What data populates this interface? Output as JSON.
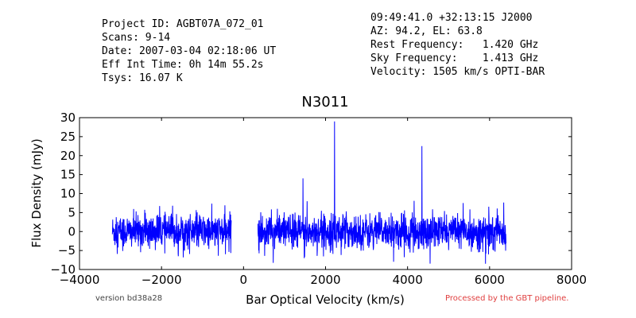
{
  "header": {
    "left": [
      "Project ID: AGBT07A_072_01",
      "Scans: 9-14",
      "Date: 2007-03-04 02:18:06 UT",
      "Eff Int Time: 0h 14m 55.2s",
      "Tsys: 16.07 K"
    ],
    "right": [
      "09:49:41.0 +32:13:15 J2000",
      "AZ: 94.2, EL: 63.8",
      "Rest Frequency:   1.420 GHz",
      "Sky Frequency:    1.413 GHz",
      "Velocity: 1505 km/s OPTI-BAR"
    ]
  },
  "footer": {
    "version": "version bd38a28",
    "processed": "Processed by the GBT pipeline."
  },
  "colors": {
    "series": "#0000ff",
    "axes": "#000000",
    "processed": "#e04040"
  },
  "chart_data": {
    "type": "line",
    "title": "N3011",
    "xlabel": "Bar Optical Velocity (km/s)",
    "ylabel": "Flux Density (mJy)",
    "xlim": [
      -4000,
      8000
    ],
    "ylim": [
      -10,
      30
    ],
    "xticks": [
      "−4000",
      "−2000",
      "0",
      "2000",
      "4000",
      "6000",
      "8000"
    ],
    "yticks": [
      "−10",
      "−5",
      "0",
      "5",
      "10",
      "15",
      "20",
      "25",
      "30"
    ],
    "grid": false,
    "series": [
      {
        "segments": [
          {
            "x_range": [
              -3200,
              -300
            ],
            "noise_rms_mjy": 2.5
          },
          {
            "x_range": [
              350,
              6400
            ],
            "noise_rms_mjy": 2.5
          }
        ],
        "features": [
          {
            "x": 1450,
            "y": 14,
            "note": "broad emission"
          },
          {
            "x": 1550,
            "y": 8
          },
          {
            "x": 1480,
            "y": -7
          },
          {
            "x": 2220,
            "y": 29
          },
          {
            "x": 4350,
            "y": 22.5
          },
          {
            "x": 5900,
            "y": -8.5
          }
        ]
      }
    ]
  }
}
